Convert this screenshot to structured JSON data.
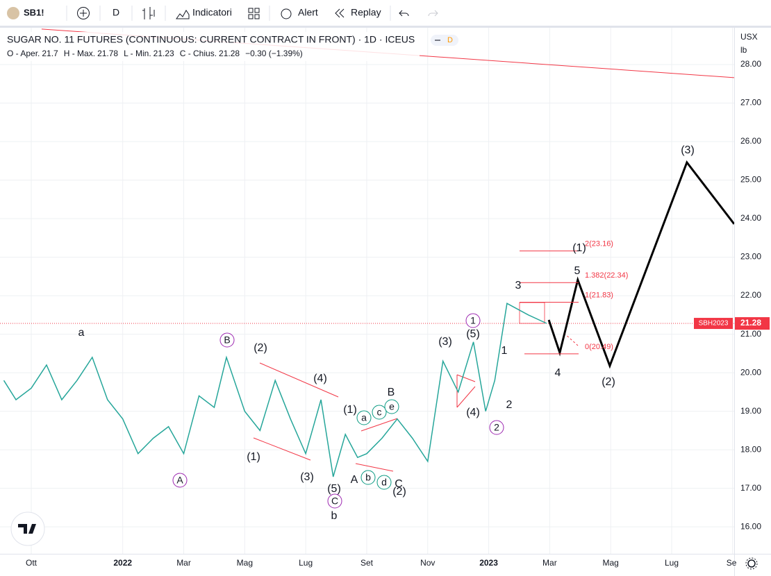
{
  "toolbar": {
    "symbol": "SB1!",
    "interval": "D",
    "indicators": "Indicatori",
    "alert": "Alert",
    "replay": "Replay"
  },
  "chart_data": {
    "type": "line",
    "title": "SUGAR NO. 11 FUTURES (CONTINUOUS: CURRENT CONTRACT IN FRONT) · 1D · ICEUS",
    "badge": "D",
    "ohlc": {
      "open_label": "O - Aper.",
      "open": 21.7,
      "high_label": "H - Max.",
      "high": 21.78,
      "low_label": "L - Min.",
      "low": 21.23,
      "close_label": "C - Chius.",
      "close": 21.28,
      "change": "−0.30 (−1.39%)"
    },
    "currency": "USX",
    "unit": "lb",
    "xlim": [
      -1.025,
      23.05
    ],
    "xticks": [
      {
        "value": 0,
        "label": "Ott"
      },
      {
        "value": 3,
        "label": "2022"
      },
      {
        "value": 5,
        "label": "Mar"
      },
      {
        "value": 7,
        "label": "Mag"
      },
      {
        "value": 9,
        "label": "Lug"
      },
      {
        "value": 11,
        "label": "Set"
      },
      {
        "value": 13,
        "label": "Nov"
      },
      {
        "value": 15,
        "label": "2023"
      },
      {
        "value": 17,
        "label": "Mar"
      },
      {
        "value": 19,
        "label": "Mag"
      },
      {
        "value": 21,
        "label": "Lug"
      },
      {
        "value": 23,
        "label": "Set"
      }
    ],
    "ylim": [
      15.3,
      28.955
    ],
    "yticks": [
      {
        "value": 16,
        "label": "16.00"
      },
      {
        "value": 17,
        "label": "17.00"
      },
      {
        "value": 18,
        "label": "18.00"
      },
      {
        "value": 19,
        "label": "19.00"
      },
      {
        "value": 20,
        "label": "20.00"
      },
      {
        "value": 21,
        "label": "21.00"
      },
      {
        "value": 22,
        "label": "22.00"
      },
      {
        "value": 23,
        "label": "23.00"
      },
      {
        "value": 24,
        "label": "24.00"
      },
      {
        "value": 25,
        "label": "25.00"
      },
      {
        "value": 26,
        "label": "26.00"
      },
      {
        "value": 27,
        "label": "27.00"
      },
      {
        "value": 28,
        "label": "28.00"
      }
    ],
    "grid": true,
    "series": [
      {
        "color": "#26a69a",
        "x": [
          -0.9,
          -0.5,
          0,
          0.5,
          1,
          1.5,
          2,
          2.5,
          3,
          3.5,
          4,
          4.5,
          5,
          5.5,
          6,
          6.4,
          7,
          7.5,
          8,
          8.5,
          9,
          9.5,
          9.9,
          10.3,
          10.7,
          11,
          11.5,
          12,
          12.5,
          13,
          13.5,
          14,
          14.5,
          14.9,
          15.2,
          15.6,
          16.3,
          16.9
        ],
        "values": [
          19.8,
          19.3,
          19.6,
          20.2,
          19.3,
          19.8,
          20.4,
          19.3,
          18.8,
          17.9,
          18.3,
          18.6,
          17.9,
          19.4,
          19.1,
          20.4,
          19.0,
          18.5,
          19.8,
          18.8,
          17.9,
          19.3,
          17.3,
          18.4,
          17.8,
          17.9,
          18.3,
          18.8,
          18.3,
          17.7,
          20.3,
          19.5,
          20.8,
          19.0,
          19.8,
          21.8,
          21.5,
          21.28
        ]
      },
      {
        "color": "#000000",
        "x": [
          16.97,
          17.33,
          17.92,
          18.97,
          21.5,
          23.05
        ],
        "values": [
          21.37,
          20.52,
          22.41,
          20.18,
          25.46,
          23.86
        ]
      },
      {
        "color": "#f23645",
        "x": [
          0.34,
          23.05
        ],
        "values": [
          28.92,
          27.66
        ]
      }
    ],
    "last_price": {
      "symbol": "SBH2023",
      "value": 21.28,
      "color": "#f23645"
    },
    "fib_levels": [
      {
        "label": "2(23.16)",
        "value": 23.16
      },
      {
        "label": "1.382(22.34)",
        "value": 22.34
      },
      {
        "label": "1(21.83)",
        "value": 21.83
      },
      {
        "label": "0(20.49)",
        "value": 20.49
      }
    ],
    "wave_labels": [
      {
        "text": "a",
        "color": "#2e8b3a"
      },
      {
        "text": "B",
        "color": "#9c27b0",
        "circled": true
      },
      {
        "text": "A",
        "color": "#9c27b0",
        "circled": true
      },
      {
        "text": "(2)",
        "color": "#1e4fd8"
      },
      {
        "text": "(1)",
        "color": "#1e4fd8"
      },
      {
        "text": "(4)",
        "color": "#1e4fd8"
      },
      {
        "text": "(3)",
        "color": "#1e4fd8"
      },
      {
        "text": "(5)",
        "color": "#1e4fd8"
      },
      {
        "text": "C",
        "color": "#9c27b0",
        "circled": true
      },
      {
        "text": "b",
        "color": "#2e8b3a"
      },
      {
        "text": "(1)",
        "color": "#1e4fd8"
      },
      {
        "text": "a",
        "color": "#089981",
        "circled": true
      },
      {
        "text": "c",
        "color": "#089981",
        "circled": true
      },
      {
        "text": "e",
        "color": "#089981",
        "circled": true
      },
      {
        "text": "b",
        "color": "#089981",
        "circled": true
      },
      {
        "text": "d",
        "color": "#089981",
        "circled": true
      },
      {
        "text": "B",
        "color": "#f23645"
      },
      {
        "text": "A",
        "color": "#f23645"
      },
      {
        "text": "C",
        "color": "#f23645"
      },
      {
        "text": "(2)",
        "color": "#1e4fd8"
      },
      {
        "text": "(3)",
        "color": "#1e4fd8"
      },
      {
        "text": "(4)",
        "color": "#1e4fd8"
      },
      {
        "text": "(5)",
        "color": "#1e4fd8"
      },
      {
        "text": "1",
        "color": "#9c27b0",
        "circled": true
      },
      {
        "text": "2",
        "color": "#9c27b0",
        "circled": true
      },
      {
        "text": "1",
        "color": "#f23645"
      },
      {
        "text": "2",
        "color": "#f23645"
      },
      {
        "text": "3",
        "color": "#f23645"
      },
      {
        "text": "4",
        "color": "#f23645"
      },
      {
        "text": "5",
        "color": "#f23645"
      },
      {
        "text": "(1)",
        "color": "#1e4fd8"
      },
      {
        "text": "(2)",
        "color": "#1e4fd8"
      },
      {
        "text": "(3)",
        "color": "#1e4fd8"
      }
    ]
  }
}
